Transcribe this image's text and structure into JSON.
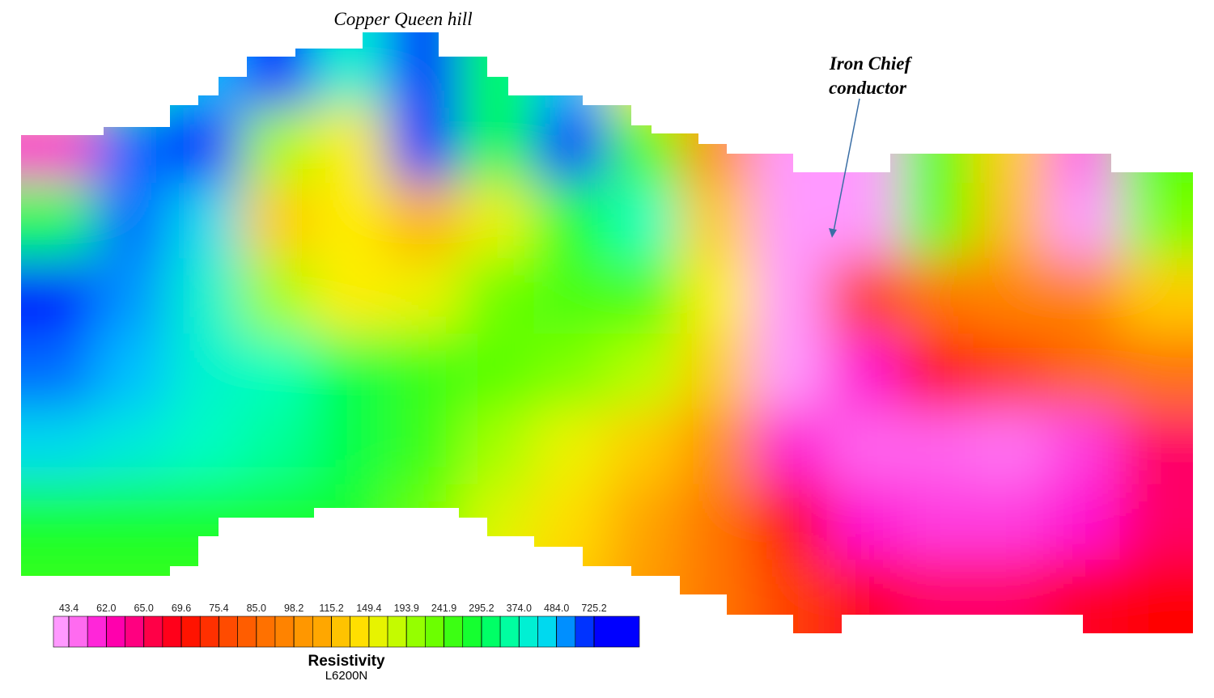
{
  "chart_data": {
    "type": "contour",
    "annotations": [
      "Copper Queen hill",
      "Iron Chief",
      "conductor"
    ],
    "z": [
      [
        200,
        300,
        500,
        725,
        400,
        725,
        300,
        500,
        150,
        120,
        100,
        100,
        120,
        150,
        120,
        150
      ],
      [
        60,
        600,
        725,
        200,
        150,
        725,
        300,
        725,
        250,
        100,
        43.4,
        43.4,
        250,
        130,
        50,
        250
      ],
      [
        300,
        600,
        450,
        130,
        150,
        115,
        160,
        280,
        374,
        130,
        43.4,
        43.4,
        240,
        120,
        43.4,
        220
      ],
      [
        725,
        550,
        400,
        200,
        150,
        160,
        230,
        250,
        250,
        150,
        43.4,
        75,
        90,
        95,
        95,
        130
      ],
      [
        600,
        500,
        400,
        370,
        300,
        260,
        240,
        220,
        190,
        130,
        43.4,
        60,
        69,
        75,
        85,
        90
      ],
      [
        450,
        420,
        380,
        350,
        300,
        260,
        200,
        160,
        130,
        100,
        60,
        50,
        50,
        48,
        55,
        65
      ],
      [
        280,
        280,
        280,
        280,
        280,
        230,
        170,
        140,
        110,
        90,
        70,
        60,
        55,
        55,
        60,
        65
      ],
      [
        260,
        260,
        260,
        260,
        260,
        200,
        150,
        130,
        105,
        90,
        75,
        68,
        65,
        65,
        68,
        70
      ]
    ],
    "colorbar": {
      "title": "Resistivity",
      "subtitle": "L6200N",
      "ticks": [
        43.4,
        {
          "value": 62,
          "label": "62.0"
        },
        {
          "value": 65,
          "label": "65.0"
        },
        69.6,
        75.4,
        {
          "value": 85,
          "label": "85.0"
        },
        98.2,
        115.2,
        149.4,
        193.9,
        241.9,
        295.2,
        {
          "value": 374,
          "label": "374.0"
        },
        {
          "value": 484,
          "label": "484.0"
        },
        725.2
      ],
      "colors": [
        "#ff99ff",
        "#ff00cc",
        "#ff0066",
        "#ff0000",
        "#ff4000",
        "#ff6600",
        "#ff8c00",
        "#ffb000",
        "#ffee00",
        "#b0ff00",
        "#55ff00",
        "#00ff40",
        "#00ffc0",
        "#00ccff",
        "#0000ff"
      ]
    }
  }
}
